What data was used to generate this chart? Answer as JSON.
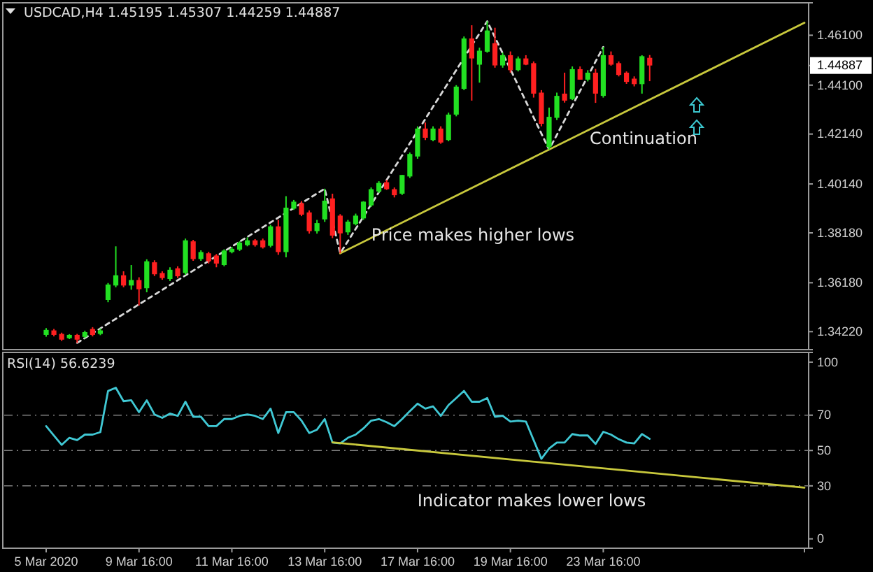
{
  "chart_data": [
    {
      "type": "candlestick",
      "title": "USDCAD,H4  1.45195 1.45307 1.44259 1.44887",
      "categories": [
        null,
        null,
        null,
        null,
        null,
        null,
        null,
        null,
        null,
        null,
        null,
        null,
        null,
        null,
        null,
        null,
        null,
        null,
        null,
        null,
        null,
        null,
        null,
        null,
        null,
        null,
        null,
        null,
        null,
        null,
        null,
        null,
        null,
        null,
        null,
        null,
        null,
        null,
        null,
        null,
        null,
        null,
        null,
        null,
        null,
        null,
        null,
        null,
        null,
        null,
        null,
        null,
        null,
        null,
        null,
        null,
        null,
        null,
        null,
        null,
        null,
        null,
        null,
        null,
        null,
        null,
        null,
        null,
        null,
        null,
        null,
        null,
        null,
        null,
        null,
        null,
        null,
        null,
        null,
        null,
        null,
        null,
        null,
        null,
        null,
        null,
        null,
        null,
        null,
        null,
        null,
        null,
        null,
        null,
        null,
        null,
        null,
        null,
        null
      ],
      "ohlc": [
        [
          1.3409,
          1.3436,
          1.3402,
          1.3429
        ],
        [
          1.3427,
          1.3433,
          1.3403,
          1.3409
        ],
        [
          1.3413,
          1.3418,
          1.3385,
          1.339
        ],
        [
          1.3396,
          1.3412,
          1.3392,
          1.3409
        ],
        [
          1.3409,
          1.3413,
          1.3377,
          1.339
        ],
        [
          1.3401,
          1.3426,
          1.3396,
          1.342
        ],
        [
          1.3433,
          1.344,
          1.3403,
          1.3409
        ],
        [
          1.3413,
          1.3435,
          1.3408,
          1.3427
        ],
        [
          1.3549,
          1.3617,
          1.354,
          1.3611
        ],
        [
          1.3607,
          1.3764,
          1.36,
          1.3648
        ],
        [
          1.3648,
          1.3664,
          1.36,
          1.3607
        ],
        [
          1.3607,
          1.3689,
          1.359,
          1.3629
        ],
        [
          1.3629,
          1.364,
          1.3527,
          1.3592
        ],
        [
          1.3596,
          1.3712,
          1.358,
          1.3704
        ],
        [
          1.37,
          1.3708,
          1.3645,
          1.3652
        ],
        [
          1.3657,
          1.3664,
          1.363,
          1.3637
        ],
        [
          1.3633,
          1.368,
          1.3625,
          1.367
        ],
        [
          1.3676,
          1.3684,
          1.3637,
          1.3644
        ],
        [
          1.3657,
          1.3795,
          1.365,
          1.3788
        ],
        [
          1.3784,
          1.379,
          1.3706,
          1.3713
        ],
        [
          1.3713,
          1.3748,
          1.3706,
          1.3741
        ],
        [
          1.3736,
          1.3742,
          1.3695,
          1.3704
        ],
        [
          1.3727,
          1.3733,
          1.368,
          1.3695
        ],
        [
          1.3689,
          1.3752,
          1.3684,
          1.3747
        ],
        [
          1.3741,
          1.3762,
          1.3736,
          1.3754
        ],
        [
          1.3751,
          1.3784,
          1.3745,
          1.3779
        ],
        [
          1.3769,
          1.38,
          1.3764,
          1.3788
        ],
        [
          1.3788,
          1.3793,
          1.3763,
          1.3769
        ],
        [
          1.3788,
          1.3795,
          1.3755,
          1.376
        ],
        [
          1.3766,
          1.385,
          1.376,
          1.3844
        ],
        [
          1.3844,
          1.387,
          1.373,
          1.3741
        ],
        [
          1.3741,
          1.3965,
          1.372,
          1.3919
        ],
        [
          1.3915,
          1.395,
          1.391,
          1.3943
        ],
        [
          1.3937,
          1.3945,
          1.3885,
          1.3891
        ],
        [
          1.39,
          1.3908,
          1.3815,
          1.3825
        ],
        [
          1.3825,
          1.387,
          1.3815,
          1.3857
        ],
        [
          1.3872,
          1.3995,
          1.3862,
          1.3947
        ],
        [
          1.3956,
          1.3975,
          1.3797,
          1.3807
        ],
        [
          1.3887,
          1.3893,
          1.3736,
          1.3816
        ],
        [
          1.382,
          1.387,
          1.381,
          1.3863
        ],
        [
          1.3853,
          1.3895,
          1.3848,
          1.3887
        ],
        [
          1.3876,
          1.3945,
          1.387,
          1.3943
        ],
        [
          1.3928,
          1.4,
          1.3922,
          1.3993
        ],
        [
          1.3984,
          1.4025,
          1.3978,
          1.4018
        ],
        [
          1.4021,
          1.403,
          1.399,
          1.3993
        ],
        [
          1.3993,
          1.4,
          1.396,
          1.3969
        ],
        [
          1.3975,
          1.405,
          1.397,
          1.405
        ],
        [
          1.4044,
          1.414,
          1.4038,
          1.4134
        ],
        [
          1.4124,
          1.4245,
          1.4115,
          1.4236
        ],
        [
          1.4236,
          1.426,
          1.419,
          1.4199
        ],
        [
          1.419,
          1.4245,
          1.4185,
          1.4236
        ],
        [
          1.4236,
          1.4245,
          1.4175,
          1.418
        ],
        [
          1.419,
          1.43,
          1.4185,
          1.4292
        ],
        [
          1.4292,
          1.441,
          1.4285,
          1.4404
        ],
        [
          1.4395,
          1.4605,
          1.439,
          1.4597
        ],
        [
          1.4597,
          1.465,
          1.4348,
          1.4517
        ],
        [
          1.4492,
          1.456,
          1.442,
          1.4548
        ],
        [
          1.4544,
          1.4666,
          1.454,
          1.4629
        ],
        [
          1.4578,
          1.464,
          1.448,
          1.4489
        ],
        [
          1.4489,
          1.454,
          1.448,
          1.453
        ],
        [
          1.453,
          1.4545,
          1.446,
          1.447
        ],
        [
          1.447,
          1.4525,
          1.4465,
          1.4517
        ],
        [
          1.4517,
          1.453,
          1.449,
          1.4492
        ],
        [
          1.4498,
          1.4505,
          1.436,
          1.4376
        ],
        [
          1.438,
          1.439,
          1.4245,
          1.4255
        ],
        [
          1.4162,
          1.432,
          1.4152,
          1.4283
        ],
        [
          1.4279,
          1.438,
          1.427,
          1.4367
        ],
        [
          1.4376,
          1.446,
          1.434,
          1.4348
        ],
        [
          1.4354,
          1.4485,
          1.435,
          1.4474
        ],
        [
          1.4474,
          1.4485,
          1.4432,
          1.4432
        ],
        [
          1.4432,
          1.447,
          1.4425,
          1.446
        ],
        [
          1.446,
          1.4475,
          1.4339,
          1.4376
        ],
        [
          1.4367,
          1.4563,
          1.436,
          1.453
        ],
        [
          1.453,
          1.4545,
          1.4488,
          1.4492
        ],
        [
          1.4498,
          1.4505,
          1.4445,
          1.4451
        ],
        [
          1.446,
          1.4465,
          1.4415,
          1.4423
        ],
        [
          1.4436,
          1.4445,
          1.4405,
          1.4414
        ],
        [
          1.4414,
          1.453,
          1.4376,
          1.4526
        ],
        [
          1.45195,
          1.45307,
          1.44259,
          1.44887
        ],
        null,
        null,
        null,
        null,
        null,
        null,
        null,
        null,
        null,
        null,
        null,
        null,
        null,
        null,
        null,
        null,
        null,
        null,
        null,
        null
      ],
      "series": [
        {
          "type": "line",
          "color": "#d8d8d8",
          "line_style": "dashed",
          "values": [
            null,
            null,
            null,
            null,
            1.3377,
            null,
            null,
            null,
            null,
            null,
            null,
            null,
            null,
            null,
            null,
            null,
            null,
            null,
            null,
            null,
            null,
            null,
            null,
            null,
            null,
            null,
            null,
            null,
            null,
            null,
            null,
            null,
            null,
            null,
            null,
            null,
            1.3995,
            null,
            1.3736,
            null,
            null,
            null,
            null,
            null,
            null,
            null,
            null,
            null,
            null,
            null,
            null,
            null,
            null,
            null,
            null,
            null,
            null,
            1.4666,
            null,
            null,
            null,
            null,
            null,
            null,
            null,
            1.4152,
            null,
            null,
            null,
            null,
            null,
            null,
            1.4563,
            null,
            null,
            null,
            null,
            null,
            null,
            null,
            null,
            null,
            null,
            null,
            null,
            null,
            null,
            null,
            null,
            null,
            null,
            null,
            null,
            null,
            null,
            null,
            null,
            null,
            null
          ]
        },
        {
          "type": "line",
          "color": "#c8c83c",
          "values": [
            null,
            null,
            null,
            null,
            null,
            null,
            null,
            null,
            null,
            null,
            null,
            null,
            null,
            null,
            null,
            null,
            null,
            null,
            null,
            null,
            null,
            null,
            null,
            null,
            null,
            null,
            null,
            null,
            null,
            null,
            null,
            null,
            null,
            null,
            null,
            null,
            null,
            null,
            1.3736,
            null,
            null,
            null,
            null,
            null,
            null,
            null,
            null,
            null,
            null,
            null,
            null,
            null,
            null,
            null,
            null,
            null,
            null,
            null,
            null,
            null,
            null,
            null,
            null,
            null,
            null,
            null,
            null,
            null,
            null,
            null,
            null,
            null,
            null,
            null,
            null,
            null,
            null,
            null,
            null,
            null,
            null,
            null,
            null,
            null,
            null,
            null,
            null,
            null,
            null,
            null,
            null,
            null,
            null,
            null,
            null,
            null,
            null,
            null,
            1.466
          ]
        }
      ],
      "ylim": [
        1.335,
        1.474
      ],
      "yticks": [
        {
          "value": 1.3422,
          "label": "1.34220"
        },
        {
          "value": 1.3618,
          "label": "1.36180"
        },
        {
          "value": 1.3818,
          "label": "1.38180"
        },
        {
          "value": 1.4014,
          "label": "1.40140"
        },
        {
          "value": 1.4214,
          "label": "1.42140"
        },
        {
          "value": 1.441,
          "label": "1.44100"
        },
        {
          "value": 1.44887,
          "label": "1.44887"
        },
        {
          "value": 1.461,
          "label": "1.46100"
        }
      ],
      "tick_labels": "y",
      "annotations": [
        "Price makes higher lows",
        "Continuation"
      ]
    },
    {
      "type": "line",
      "title": "RSI(14) 56.6239",
      "categories": [
        "5 Mar 2020",
        null,
        null,
        null,
        null,
        null,
        null,
        null,
        null,
        null,
        null,
        null,
        "9 Mar 16:00",
        null,
        null,
        null,
        null,
        null,
        null,
        null,
        null,
        null,
        null,
        null,
        "11 Mar 16:00",
        null,
        null,
        null,
        null,
        null,
        null,
        null,
        null,
        null,
        null,
        null,
        "13 Mar 16:00",
        null,
        null,
        null,
        null,
        null,
        null,
        null,
        null,
        null,
        null,
        null,
        "17 Mar 16:00",
        null,
        null,
        null,
        null,
        null,
        null,
        null,
        null,
        null,
        null,
        null,
        "19 Mar 16:00",
        null,
        null,
        null,
        null,
        null,
        null,
        null,
        null,
        null,
        null,
        null,
        "23 Mar 16:00",
        null,
        null,
        null,
        null,
        null,
        null,
        null,
        null,
        null,
        null,
        null,
        null,
        null,
        null,
        null,
        null,
        null,
        null,
        null,
        null,
        null,
        null,
        null,
        null,
        null,
        null
      ],
      "series": [
        {
          "color": "#40c8d4",
          "values": [
            63.8,
            58.5,
            53.2,
            57.2,
            55.9,
            59.0,
            59.0,
            60.4,
            83.7,
            85.5,
            77.9,
            78.4,
            71.7,
            78.4,
            70.4,
            68.5,
            70.9,
            69.6,
            77.6,
            69.1,
            69.1,
            63.8,
            63.8,
            67.8,
            67.8,
            69.6,
            70.4,
            69.6,
            67.8,
            73.7,
            59.9,
            71.7,
            71.7,
            66.9,
            59.9,
            61.8,
            67.8,
            54.5,
            54.0,
            57.2,
            59.0,
            62.5,
            66.9,
            67.8,
            66.0,
            63.8,
            67.8,
            72.3,
            76.5,
            73.7,
            75.0,
            69.6,
            75.7,
            79.7,
            83.7,
            77.6,
            77.6,
            79.7,
            69.1,
            69.6,
            66.4,
            66.9,
            66.4,
            55.9,
            45.3,
            51.1,
            54.5,
            54.5,
            59.3,
            58.5,
            58.5,
            53.7,
            60.6,
            59.0,
            56.4,
            54.5,
            54.0,
            59.3,
            56.6,
            null,
            null,
            null,
            null,
            null,
            null,
            null,
            null,
            null,
            null,
            null,
            null,
            null,
            null,
            null,
            null,
            null,
            null,
            null,
            null
          ]
        },
        {
          "color": "#c8c83c",
          "values": [
            null,
            null,
            null,
            null,
            null,
            null,
            null,
            null,
            null,
            null,
            null,
            null,
            null,
            null,
            null,
            null,
            null,
            null,
            null,
            null,
            null,
            null,
            null,
            null,
            null,
            null,
            null,
            null,
            null,
            null,
            null,
            null,
            null,
            null,
            null,
            null,
            null,
            54.6,
            null,
            null,
            null,
            null,
            null,
            null,
            null,
            null,
            null,
            null,
            null,
            null,
            null,
            null,
            null,
            null,
            null,
            null,
            null,
            null,
            null,
            null,
            null,
            null,
            null,
            null,
            null,
            null,
            null,
            null,
            null,
            null,
            null,
            null,
            null,
            null,
            null,
            null,
            null,
            null,
            null,
            null,
            null,
            null,
            null,
            null,
            null,
            null,
            null,
            null,
            null,
            null,
            null,
            null,
            null,
            null,
            null,
            null,
            null,
            null,
            29.0
          ]
        }
      ],
      "ylim": [
        -5.3,
        105.5
      ],
      "yticks": [
        0,
        30,
        50,
        70,
        100
      ],
      "ref_lines": [
        {
          "axis": "y",
          "value": 30,
          "line_style": "dashed",
          "color": "#808080"
        },
        {
          "axis": "y",
          "value": 50,
          "line_style": "dashed",
          "color": "#808080"
        },
        {
          "axis": "y",
          "value": 70,
          "line_style": "dashed",
          "color": "#808080"
        }
      ],
      "annotations": [
        "Indicator makes lower lows"
      ]
    }
  ]
}
